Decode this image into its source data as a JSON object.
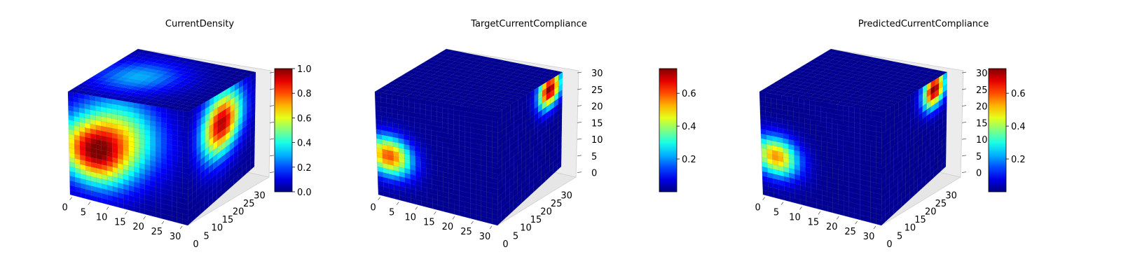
{
  "chart_data": [
    {
      "type": "3d-volume",
      "title": "CurrentDensity",
      "x_ticks": [
        "0",
        "5",
        "10",
        "15",
        "20",
        "25",
        "30"
      ],
      "y_ticks": [
        "0",
        "5",
        "10",
        "15",
        "20",
        "25",
        "30"
      ],
      "z_ticks": [],
      "xlim": [
        0,
        32
      ],
      "ylim": [
        0,
        32
      ],
      "zlim": [
        0,
        32
      ],
      "colorbar": {
        "min": 0.0,
        "max": 1.0,
        "ticks": [
          "0.0",
          "0.2",
          "0.4",
          "0.6",
          "0.8",
          "1.0"
        ]
      },
      "hotspots": [
        {
          "face": "front",
          "u": 0.2,
          "v": 0.55,
          "value": 0.85,
          "spread": 0.35
        },
        {
          "face": "front",
          "u": 0.45,
          "v": 0.3,
          "value": 0.5,
          "spread": 0.4
        },
        {
          "face": "top",
          "u": 0.3,
          "v": 0.5,
          "value": 0.3,
          "spread": 0.4
        },
        {
          "face": "side",
          "u": 0.5,
          "v": 0.3,
          "value": 0.95,
          "spread": 0.35
        }
      ]
    },
    {
      "type": "3d-volume",
      "title": "TargetCurrentCompliance",
      "x_ticks": [
        "0",
        "5",
        "10",
        "15",
        "20",
        "25",
        "30"
      ],
      "y_ticks": [
        "0",
        "5",
        "10",
        "15",
        "20",
        "25",
        "30"
      ],
      "z_ticks": [
        "0",
        "5",
        "10",
        "15",
        "20",
        "25",
        "30"
      ],
      "xlim": [
        0,
        32
      ],
      "ylim": [
        0,
        32
      ],
      "zlim": [
        0,
        32
      ],
      "colorbar": {
        "min": 0.0,
        "max": 0.75,
        "ticks": [
          "0.2",
          "0.4",
          "0.6"
        ]
      },
      "hotspots": [
        {
          "face": "front",
          "u": 0.1,
          "v": 0.6,
          "value": 0.6,
          "spread": 0.22
        },
        {
          "face": "side",
          "u": 0.8,
          "v": 0.1,
          "value": 0.75,
          "spread": 0.2
        }
      ]
    },
    {
      "type": "3d-volume",
      "title": "PredictedCurrentCompliance",
      "x_ticks": [
        "0",
        "5",
        "10",
        "15",
        "20",
        "25",
        "30"
      ],
      "y_ticks": [
        "0",
        "5",
        "10",
        "15",
        "20",
        "25",
        "30"
      ],
      "z_ticks": [
        "0",
        "5",
        "10",
        "15",
        "20",
        "25",
        "30"
      ],
      "xlim": [
        0,
        32
      ],
      "ylim": [
        0,
        32
      ],
      "zlim": [
        0,
        32
      ],
      "colorbar": {
        "min": 0.0,
        "max": 0.75,
        "ticks": [
          "0.2",
          "0.4",
          "0.6"
        ]
      },
      "hotspots": [
        {
          "face": "front",
          "u": 0.12,
          "v": 0.6,
          "value": 0.55,
          "spread": 0.22
        },
        {
          "face": "side",
          "u": 0.8,
          "v": 0.1,
          "value": 0.75,
          "spread": 0.2
        }
      ]
    }
  ]
}
